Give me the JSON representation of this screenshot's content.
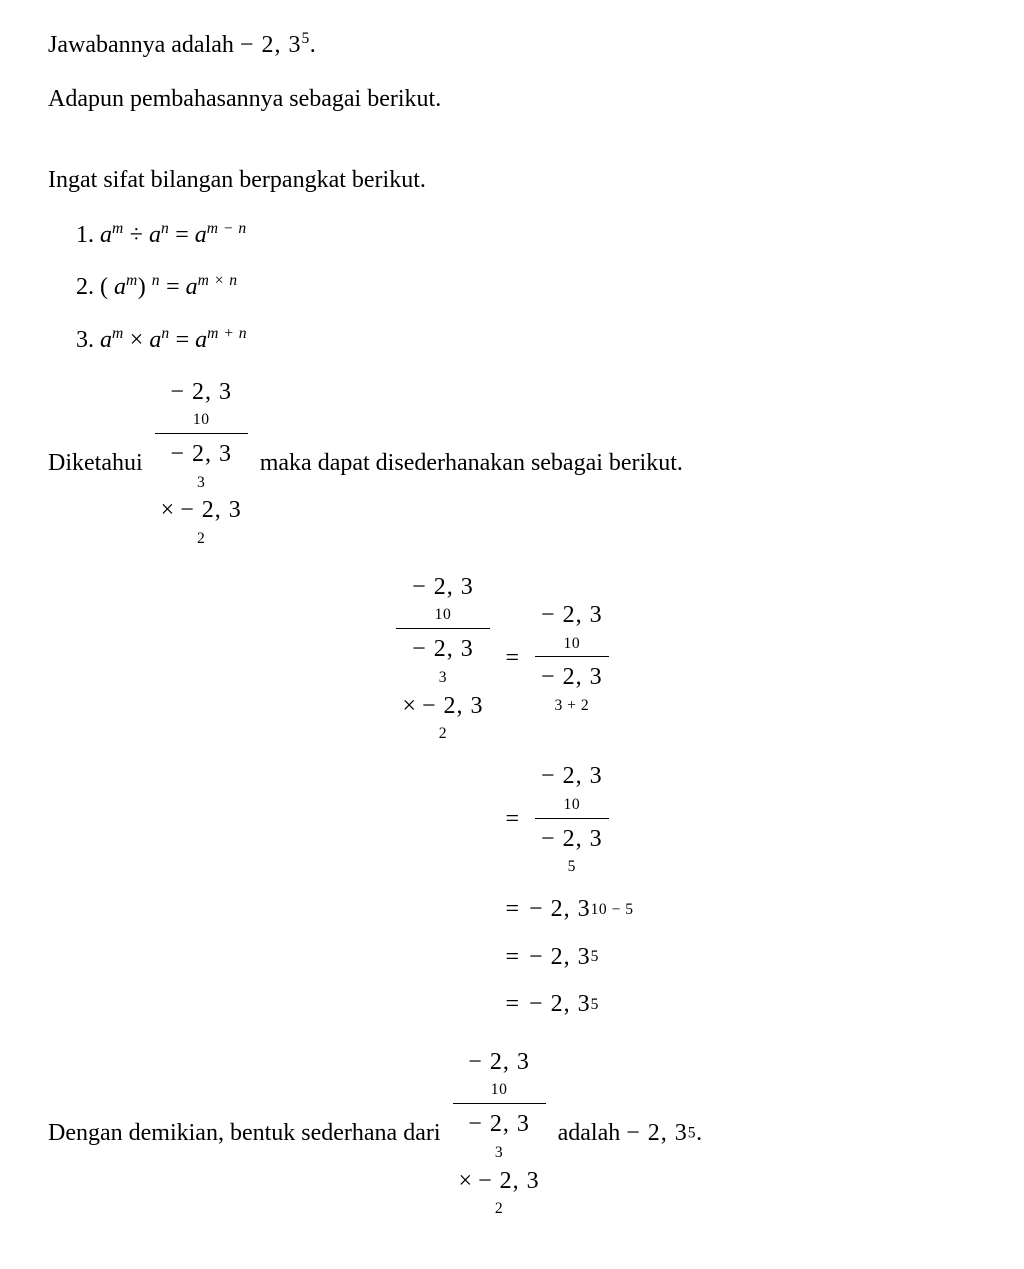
{
  "colors": {
    "text": "#000000",
    "background": "#ffffff",
    "rule_line": "#000000"
  },
  "typography": {
    "font_family": "Times New Roman",
    "body_fontsize_pt": 18,
    "superscript_scale": 0.65
  },
  "text": {
    "answer_prefix": "Jawabannya adalah ",
    "answer_value": "− 2, 3",
    "answer_exp": "5",
    "period": ".",
    "explain_intro": "Adapun pembahasannya sebagai berikut.",
    "rules_intro": "Ingat sifat bilangan berpangkat berikut.",
    "known_prefix": "Diketahui ",
    "known_suffix": " maka dapat disederhanakan sebagai berikut.",
    "conclusion_prefix": "Dengan demikian, bentuk sederhana dari ",
    "conclusion_mid": " adalah ",
    "conclusion_value": "− 2, 3",
    "conclusion_exp": "5"
  },
  "rules": {
    "r1_label": "1.",
    "r1_lhs_base1": "a",
    "r1_lhs_exp1": "m",
    "r1_op1": " ÷ ",
    "r1_lhs_base2": "a",
    "r1_lhs_exp2": "n",
    "r1_eq": " = ",
    "r1_rhs_base": "a",
    "r1_rhs_exp": "m − n",
    "r2_label": "2.",
    "r2_open": "( ",
    "r2_base": "a",
    "r2_exp1": "m",
    "r2_close": ") ",
    "r2_exp2": "n",
    "r2_eq": " = ",
    "r2_rhs_base": "a",
    "r2_rhs_exp": "m × n",
    "r3_label": "3.",
    "r3_lhs_base1": "a",
    "r3_lhs_exp1": "m",
    "r3_op1": " × ",
    "r3_lhs_base2": "a",
    "r3_lhs_exp2": "n",
    "r3_eq": " = ",
    "r3_rhs_base": "a",
    "r3_rhs_exp": "m + n"
  },
  "expr": {
    "num_base": "− 2, 3",
    "num_exp": "10",
    "den_base1": "− 2, 3",
    "den_exp1": "3",
    "den_op": "× ",
    "den_base2": "− 2, 3",
    "den_exp2": "2"
  },
  "deriv": {
    "row1_rhs_num_base": "− 2, 3",
    "row1_rhs_num_exp": "10",
    "row1_rhs_den_base": "− 2, 3",
    "row1_rhs_den_exp": "3 + 2",
    "row2_rhs_num_base": "− 2, 3",
    "row2_rhs_num_exp": "10",
    "row2_rhs_den_base": "− 2, 3",
    "row2_rhs_den_exp": "5",
    "row3_rhs_base": "− 2, 3",
    "row3_rhs_exp": "10 − 5",
    "row4_rhs_base": "− 2, 3",
    "row4_rhs_exp": "5",
    "row5_rhs_base": "− 2, 3",
    "row5_rhs_exp": "5",
    "eq": "="
  }
}
